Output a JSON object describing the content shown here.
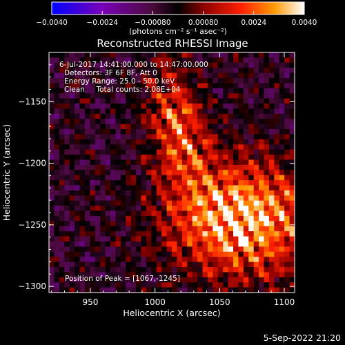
{
  "chart_data": {
    "type": "heatmap",
    "title": "Reconstructed RHESSI Image",
    "xlabel": "Heliocentric X (arcsec)",
    "ylabel": "Heliocentric Y (arcsec)",
    "xlim": [
      918,
      1108
    ],
    "ylim": [
      -1305,
      -1110
    ],
    "x_ticks": [
      950,
      1000,
      1050,
      1100
    ],
    "y_ticks": [
      -1150,
      -1200,
      -1250,
      -1300
    ],
    "x_tick_labels": [
      "950",
      "1000",
      "1050",
      "1100"
    ],
    "y_tick_labels": [
      "−1150",
      "−1200",
      "−1250",
      "−1300"
    ],
    "colorbar": {
      "range": [
        -0.004,
        0.004
      ],
      "ticks": [
        -0.004,
        -0.0024,
        -0.0008,
        0.0008,
        0.0024,
        0.004
      ],
      "tick_labels": [
        "−0.0040",
        "−0.0024",
        "−0.00080",
        "0.00080",
        "0.0024",
        "0.0040"
      ],
      "unit_label": "(photons cm⁻² s⁻¹ asec⁻²)",
      "colors": [
        "#0000ff",
        "#7b00b8",
        "#4a0a3a",
        "#000000",
        "#8b0000",
        "#ff2000",
        "#ff9900",
        "#ffffff"
      ]
    },
    "annotations": [
      "6-Jul-2017 14:41:00.000 to 14:47:00.000",
      "Detectors: 3F 6F 8F, Att 0",
      "Energy Range: 25.0 - 50.0 keV",
      "Clean     Total counts: 2.08E+04"
    ],
    "peak_label": "Position of Peak = [1067,-1245]",
    "peak": {
      "x": 1067,
      "y": -1245
    },
    "grid": false
  },
  "footer": {
    "timestamp": "5-Sep-2022 21:20"
  }
}
